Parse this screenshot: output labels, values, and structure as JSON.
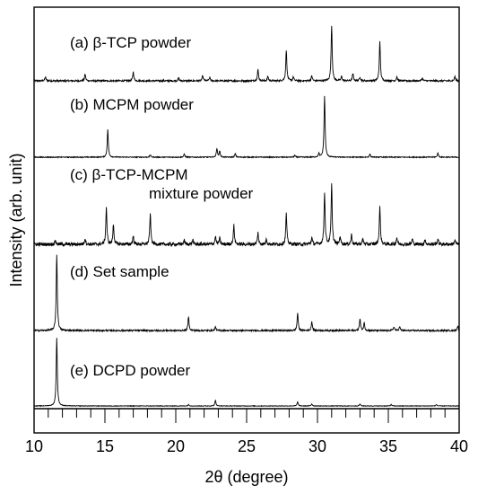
{
  "chart_data": {
    "type": "line",
    "xlabel": "2θ (degree)",
    "ylabel": "Intensity (arb. unit)",
    "xlim": [
      10,
      40
    ],
    "x_ticks": [
      "10",
      "15",
      "20",
      "25",
      "30",
      "35",
      "40"
    ],
    "x_minor_step": 1,
    "grid": false,
    "panel_labels": [
      "(a) β-TCP powder",
      "(b) MCPM powder",
      "(c) β-TCP-MCPM",
      "mixture powder",
      "(d) Set sample",
      "(e) DCPD powder"
    ],
    "series": [
      {
        "noise": 0.03,
        "peaks": [
          [
            10.8,
            0.07
          ],
          [
            13.6,
            0.12
          ],
          [
            17.0,
            0.16
          ],
          [
            20.2,
            0.05
          ],
          [
            21.9,
            0.09
          ],
          [
            22.4,
            0.06
          ],
          [
            25.8,
            0.2
          ],
          [
            26.5,
            0.08
          ],
          [
            27.8,
            0.55
          ],
          [
            28.3,
            0.07
          ],
          [
            29.6,
            0.09
          ],
          [
            31.0,
            1.0
          ],
          [
            31.7,
            0.08
          ],
          [
            32.5,
            0.13
          ],
          [
            33.0,
            0.07
          ],
          [
            34.4,
            0.7
          ],
          [
            35.6,
            0.07
          ],
          [
            37.4,
            0.05
          ],
          [
            39.7,
            0.08
          ]
        ]
      },
      {
        "noise": 0.015,
        "peaks": [
          [
            15.2,
            0.45
          ],
          [
            18.2,
            0.04
          ],
          [
            20.6,
            0.05
          ],
          [
            22.9,
            0.14
          ],
          [
            23.1,
            0.1
          ],
          [
            24.2,
            0.06
          ],
          [
            28.4,
            0.03
          ],
          [
            30.1,
            0.06
          ],
          [
            30.5,
            1.0
          ],
          [
            33.7,
            0.05
          ],
          [
            38.5,
            0.07
          ]
        ]
      },
      {
        "noise": 0.05,
        "peaks": [
          [
            11.5,
            0.06
          ],
          [
            13.6,
            0.09
          ],
          [
            15.1,
            0.55
          ],
          [
            15.6,
            0.3
          ],
          [
            17.0,
            0.12
          ],
          [
            18.2,
            0.45
          ],
          [
            20.6,
            0.06
          ],
          [
            21.2,
            0.07
          ],
          [
            22.8,
            0.12
          ],
          [
            23.1,
            0.09
          ],
          [
            24.1,
            0.28
          ],
          [
            25.8,
            0.17
          ],
          [
            26.4,
            0.08
          ],
          [
            27.8,
            0.45
          ],
          [
            29.6,
            0.1
          ],
          [
            30.5,
            0.78
          ],
          [
            31.0,
            0.88
          ],
          [
            31.6,
            0.12
          ],
          [
            32.4,
            0.14
          ],
          [
            33.2,
            0.08
          ],
          [
            34.4,
            0.55
          ],
          [
            35.6,
            0.1
          ],
          [
            36.7,
            0.08
          ],
          [
            37.6,
            0.07
          ],
          [
            38.5,
            0.08
          ],
          [
            39.7,
            0.07
          ]
        ]
      },
      {
        "noise": 0.02,
        "peaks": [
          [
            11.6,
            1.0
          ],
          [
            20.9,
            0.18
          ],
          [
            22.8,
            0.05
          ],
          [
            28.6,
            0.23
          ],
          [
            29.6,
            0.12
          ],
          [
            33.0,
            0.15
          ],
          [
            33.3,
            0.1
          ],
          [
            35.4,
            0.05
          ],
          [
            35.8,
            0.05
          ],
          [
            39.9,
            0.06
          ]
        ]
      },
      {
        "noise": 0.008,
        "peaks": [
          [
            11.6,
            1.0
          ],
          [
            20.9,
            0.02
          ],
          [
            22.8,
            0.08
          ],
          [
            28.6,
            0.06
          ],
          [
            29.6,
            0.03
          ],
          [
            33.0,
            0.03
          ],
          [
            35.2,
            0.02
          ],
          [
            38.4,
            0.02
          ]
        ]
      }
    ]
  }
}
